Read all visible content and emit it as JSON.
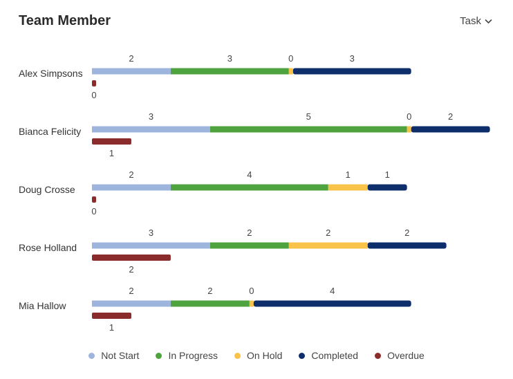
{
  "header": {
    "title": "Team Member",
    "filter_label": "Task"
  },
  "chart_data": {
    "type": "bar",
    "orientation": "horizontal",
    "stacked": true,
    "title": "Team Member",
    "categories": [
      "Alex Simpsons",
      "Bianca Felicity",
      "Doug Crosse",
      "Rose Holland",
      "Mia Hallow"
    ],
    "series": [
      {
        "name": "Not Start",
        "color": "#9db5dd",
        "values": [
          2,
          3,
          2,
          3,
          2
        ]
      },
      {
        "name": "In Progress",
        "color": "#4ea33f",
        "values": [
          3,
          5,
          4,
          2,
          2
        ]
      },
      {
        "name": "On Hold",
        "color": "#f9c349",
        "values": [
          0,
          0,
          1,
          2,
          0
        ]
      },
      {
        "name": "Completed",
        "color": "#0e2d6b",
        "values": [
          3,
          2,
          1,
          2,
          4
        ]
      }
    ],
    "overdue": {
      "name": "Overdue",
      "color": "#8b2c2c",
      "values": [
        0,
        1,
        0,
        2,
        1
      ]
    },
    "xmax": 10.2,
    "legend": [
      "Not Start",
      "In Progress",
      "On Hold",
      "Completed",
      "Overdue"
    ]
  }
}
